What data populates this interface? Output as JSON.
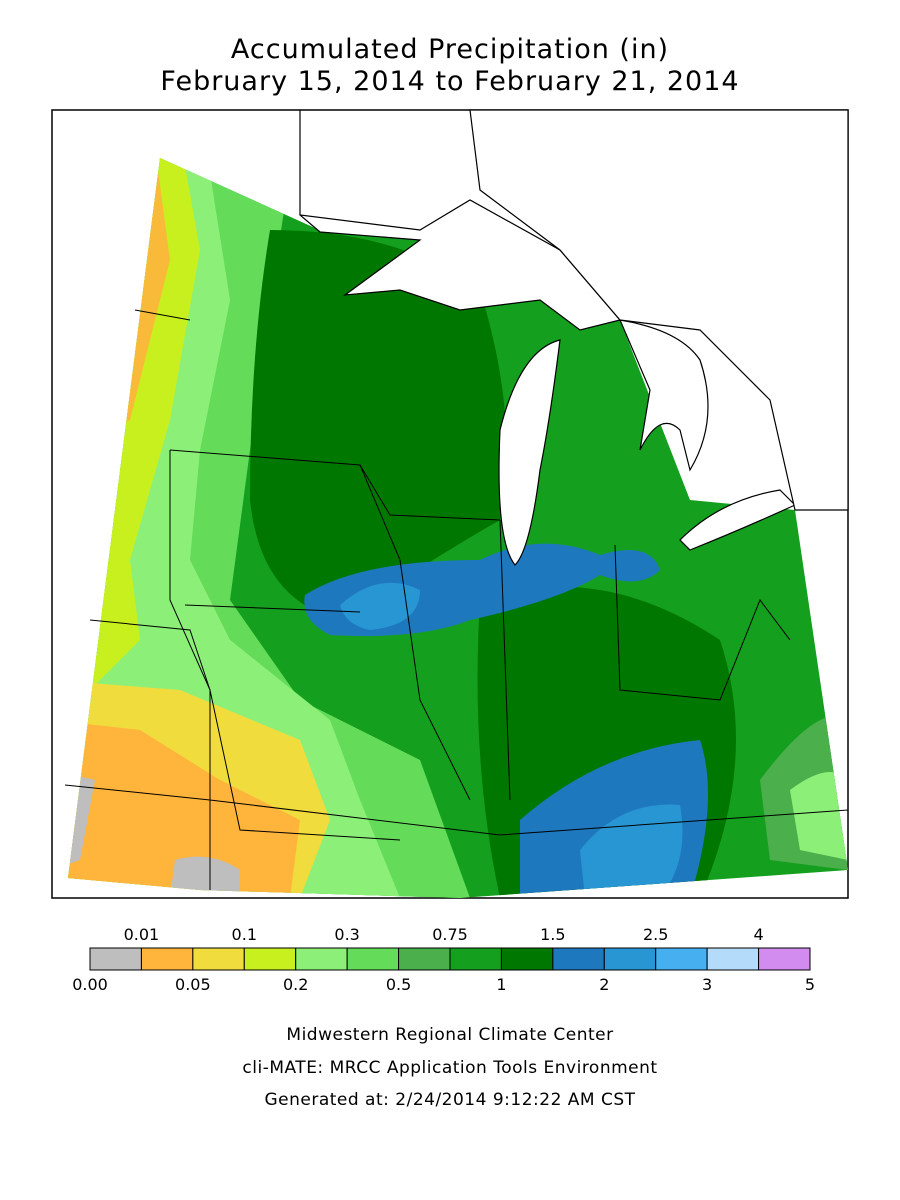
{
  "header": {
    "title_lines": [
      "Accumulated Precipitation (in)",
      "February 15, 2014 to February 21, 2014"
    ]
  },
  "legend": {
    "labels": [
      "0.00",
      "0.01",
      "0.05",
      "0.1",
      "0.2",
      "0.3",
      "0.5",
      "0.75",
      "1",
      "1.5",
      "2",
      "2.5",
      "3",
      "4",
      "5"
    ],
    "colors": [
      "#bebebe",
      "#ffb43c",
      "#f0dc3c",
      "#c8f01e",
      "#8cf078",
      "#64dc5a",
      "#4baf4b",
      "#14a01e",
      "#007800",
      "#1e78be",
      "#2896d2",
      "#46aff0",
      "#b4dcfa",
      "#d28cf0"
    ]
  },
  "footer": {
    "lines": [
      "Midwestern Regional Climate Center",
      "cli-MATE: MRCC Application Tools Environment",
      "Generated at: 2/24/2014 9:12:22 AM CST"
    ]
  }
}
